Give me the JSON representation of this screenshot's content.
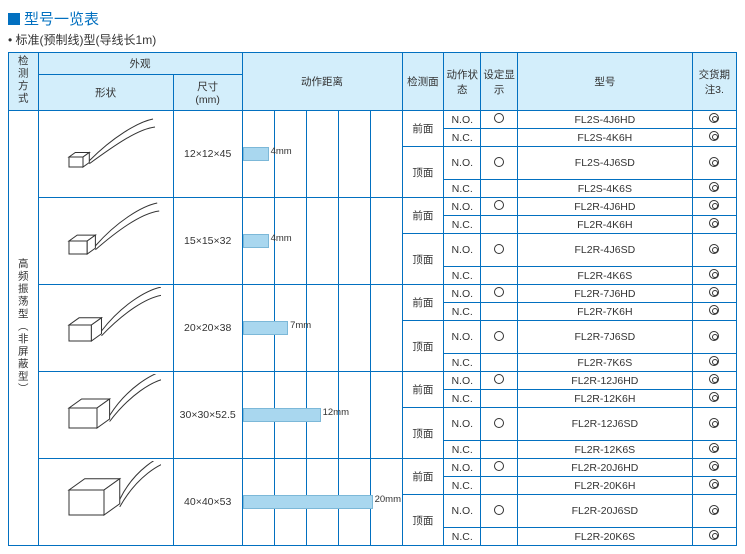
{
  "title": "型号一览表",
  "subtitle": "标准(预制线)型(导线长1m)",
  "header": {
    "detect_method": "检测方式",
    "appearance": "外观",
    "shape": "形状",
    "dimension": "尺寸\n(mm)",
    "op_distance": "动作距离",
    "detect_surface": "检测面",
    "op_state": "动作状态",
    "setting": "设定显示",
    "model": "型号",
    "delivery": "交货期\n注3."
  },
  "detect_method_value": "高频振荡型（非屏蔽型）",
  "surf": {
    "front": "前面",
    "top": "顶面"
  },
  "state": {
    "no": "N.O.",
    "nc": "N.C."
  },
  "bar_unit": 6.5,
  "groups": [
    {
      "dim": "12×12×45",
      "bar_mm": 4,
      "bar_label": "4mm",
      "shape": "square-small",
      "rows": [
        {
          "surf": "前面",
          "state": "N.O.",
          "set": "circle",
          "model": "FL2S-4J6HD",
          "del": "dcircle"
        },
        {
          "surf": "",
          "state": "N.C.",
          "set": "",
          "model": "FL2S-4K6H",
          "del": "dcircle"
        },
        {
          "surf": "顶面",
          "state": "N.O.",
          "set": "circle",
          "model": "FL2S-4J6SD",
          "del": "dcircle"
        },
        {
          "surf": "",
          "state": "N.C.",
          "set": "",
          "model": "FL2S-4K6S",
          "del": "dcircle"
        }
      ]
    },
    {
      "dim": "15×15×32",
      "bar_mm": 4,
      "bar_label": "4mm",
      "shape": "square-med",
      "rows": [
        {
          "surf": "前面",
          "state": "N.O.",
          "set": "circle",
          "model": "FL2R-4J6HD",
          "del": "dcircle"
        },
        {
          "surf": "",
          "state": "N.C.",
          "set": "",
          "model": "FL2R-4K6H",
          "del": "dcircle"
        },
        {
          "surf": "顶面",
          "state": "N.O.",
          "set": "circle",
          "model": "FL2R-4J6SD",
          "del": "dcircle"
        },
        {
          "surf": "",
          "state": "N.C.",
          "set": "",
          "model": "FL2R-4K6S",
          "del": "dcircle"
        }
      ]
    },
    {
      "dim": "20×20×38",
      "bar_mm": 7,
      "bar_label": "7mm",
      "shape": "square-lg",
      "rows": [
        {
          "surf": "前面",
          "state": "N.O.",
          "set": "circle",
          "model": "FL2R-7J6HD",
          "del": "dcircle"
        },
        {
          "surf": "",
          "state": "N.C.",
          "set": "",
          "model": "FL2R-7K6H",
          "del": "dcircle"
        },
        {
          "surf": "顶面",
          "state": "N.O.",
          "set": "circle",
          "model": "FL2R-7J6SD",
          "del": "dcircle"
        },
        {
          "surf": "",
          "state": "N.C.",
          "set": "",
          "model": "FL2R-7K6S",
          "del": "dcircle"
        }
      ]
    },
    {
      "dim": "30×30×52.5",
      "bar_mm": 12,
      "bar_label": "12mm",
      "shape": "square-xl",
      "rows": [
        {
          "surf": "前面",
          "state": "N.O.",
          "set": "circle",
          "model": "FL2R-12J6HD",
          "del": "dcircle"
        },
        {
          "surf": "",
          "state": "N.C.",
          "set": "",
          "model": "FL2R-12K6H",
          "del": "dcircle"
        },
        {
          "surf": "顶面",
          "state": "N.O.",
          "set": "circle",
          "model": "FL2R-12J6SD",
          "del": "dcircle"
        },
        {
          "surf": "",
          "state": "N.C.",
          "set": "",
          "model": "FL2R-12K6S",
          "del": "dcircle"
        }
      ]
    },
    {
      "dim": "40×40×53",
      "bar_mm": 20,
      "bar_label": "20mm",
      "shape": "square-xxl",
      "rows": [
        {
          "surf": "前面",
          "state": "N.O.",
          "set": "circle",
          "model": "FL2R-20J6HD",
          "del": "dcircle"
        },
        {
          "surf": "",
          "state": "N.C.",
          "set": "",
          "model": "FL2R-20K6H",
          "del": "dcircle"
        },
        {
          "surf": "顶面",
          "state": "N.O.",
          "set": "circle",
          "model": "FL2R-20J6SD",
          "del": "dcircle"
        },
        {
          "surf": "",
          "state": "N.C.",
          "set": "",
          "model": "FL2R-20K6S",
          "del": "dcircle"
        }
      ]
    }
  ]
}
